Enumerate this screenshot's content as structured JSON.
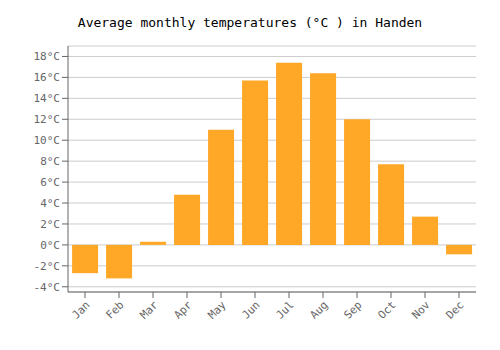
{
  "chart_data": {
    "type": "bar",
    "title": "Average monthly temperatures (°C ) in Handen",
    "categories": [
      "Jan",
      "Feb",
      "Mar",
      "Apr",
      "May",
      "Jun",
      "Jul",
      "Aug",
      "Sep",
      "Oct",
      "Nov",
      "Dec"
    ],
    "values": [
      -2.7,
      -3.2,
      0.3,
      4.8,
      11.0,
      15.7,
      17.4,
      16.4,
      12.0,
      7.7,
      2.7,
      -0.9
    ],
    "color": "#FFA726",
    "ylim": [
      -4.5,
      19
    ],
    "yticks": [
      {
        "value": -4,
        "label": "-4°C"
      },
      {
        "value": -2,
        "label": "-2°C"
      },
      {
        "value": 0,
        "label": "0°C"
      },
      {
        "value": 2,
        "label": "2°C"
      },
      {
        "value": 4,
        "label": "4°C"
      },
      {
        "value": 6,
        "label": "6°C"
      },
      {
        "value": 8,
        "label": "8°C"
      },
      {
        "value": 10,
        "label": "10°C"
      },
      {
        "value": 12,
        "label": "12°C"
      },
      {
        "value": 14,
        "label": "14°C"
      },
      {
        "value": 16,
        "label": "16°C"
      },
      {
        "value": 18,
        "label": "18°C"
      }
    ],
    "grid": true
  }
}
